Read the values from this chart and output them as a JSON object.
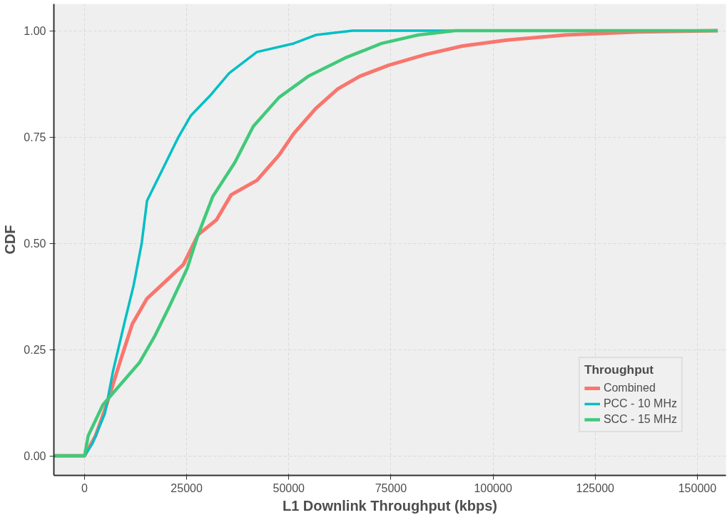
{
  "chart_data": {
    "type": "line",
    "xlabel": "L1 Downlink Throughput (kbps)",
    "ylabel": "CDF",
    "legend_title": "Throughput",
    "legend": "bottom right",
    "grid": true,
    "line_style": "solid",
    "xlim": [
      -7500,
      157000
    ],
    "ylim": [
      -0.046,
      1.063
    ],
    "xticks": [
      0,
      25000,
      50000,
      75000,
      100000,
      125000,
      150000
    ],
    "yticks": [
      {
        "value": 0,
        "label": "0.00"
      },
      {
        "value": 0.25,
        "label": "0.25"
      },
      {
        "value": 0.5,
        "label": "0.50"
      },
      {
        "value": 0.75,
        "label": "0.75"
      },
      {
        "value": 1,
        "label": "1.00"
      }
    ],
    "series": [
      {
        "name": "Combined",
        "color": "#f8766d",
        "x": [
          -7500,
          0,
          2700,
          5400,
          9000,
          11700,
          15300,
          19800,
          24200,
          27800,
          32300,
          35900,
          42200,
          47600,
          51200,
          56600,
          62000,
          67400,
          74500,
          83500,
          92500,
          103300,
          117700,
          135600,
          155000
        ],
        "values": [
          0,
          0,
          0.047,
          0.12,
          0.23,
          0.31,
          0.37,
          0.41,
          0.45,
          0.52,
          0.555,
          0.614,
          0.648,
          0.707,
          0.758,
          0.817,
          0.863,
          0.893,
          0.919,
          0.944,
          0.964,
          0.978,
          0.99,
          0.997,
          1.0
        ]
      },
      {
        "name": "PCC - 10 MHz",
        "color": "#00bfc4",
        "x": [
          -7500,
          0,
          2000,
          5000,
          7000,
          9900,
          12000,
          14000,
          15300,
          18900,
          23000,
          26000,
          31000,
          35400,
          42200,
          51200,
          56600,
          65600,
          155000
        ],
        "values": [
          0,
          0,
          0.03,
          0.1,
          0.2,
          0.318,
          0.4,
          0.5,
          0.6,
          0.67,
          0.75,
          0.8,
          0.85,
          0.9,
          0.95,
          0.97,
          0.99,
          1.0,
          1.0
        ]
      },
      {
        "name": "SCC - 15 MHz",
        "color": "#41c97a",
        "x": [
          -7500,
          0,
          900,
          4500,
          9900,
          13500,
          17100,
          20700,
          25100,
          27800,
          31400,
          36800,
          41300,
          47600,
          54800,
          63800,
          72700,
          81700,
          90700,
          155000
        ],
        "values": [
          0,
          0,
          0.047,
          0.12,
          0.18,
          0.22,
          0.28,
          0.35,
          0.44,
          0.52,
          0.61,
          0.69,
          0.775,
          0.843,
          0.893,
          0.936,
          0.97,
          0.99,
          1.0,
          1.0
        ]
      }
    ]
  }
}
